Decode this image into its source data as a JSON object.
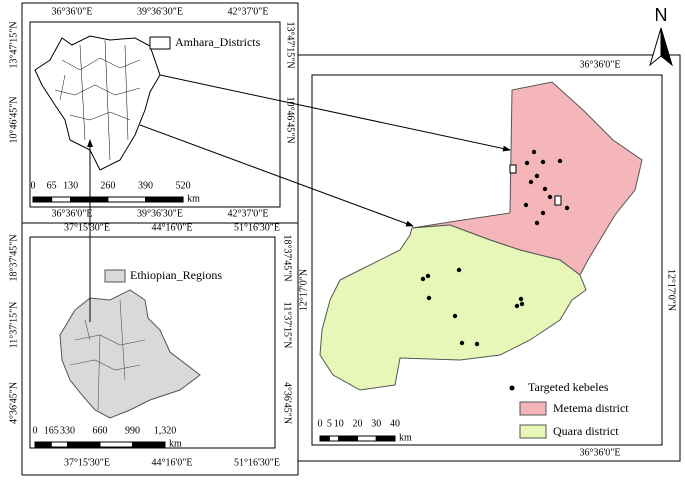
{
  "north_arrow": "N",
  "inset_amhara": {
    "legend": "Amhara_Districts",
    "top_labels": [
      "36°36'0\"E",
      "39°36'30\"E",
      "42°37'0\"E"
    ],
    "bottom_labels": [
      "36°36'0\"E",
      "39°36'30\"E",
      "42°37'0\"E"
    ],
    "left_labels": [
      "13°47'15\"N",
      "10°46'45\"N"
    ],
    "right_labels": [
      "13°47'15\"N",
      "10°46'45\"N"
    ],
    "scale_labels": [
      "0",
      "65",
      "130",
      "260",
      "390",
      "520"
    ],
    "scale_unit": "km"
  },
  "inset_ethiopia": {
    "legend": "Ethiopian_Regions",
    "top_labels": [
      "37°15'30\"E",
      "44°16'0\"E",
      "51°16'30\"E"
    ],
    "bottom_labels": [
      "37°15'30\"E",
      "44°16'0\"E",
      "51°16'30\"E"
    ],
    "left_labels": [
      "18°37'45\"N",
      "11°37'15\"N",
      "4°36'45\"N"
    ],
    "right_labels": [
      "18°37'45\"N",
      "11°37'15\"N",
      "4°36'45\"N"
    ],
    "scale_labels": [
      "0",
      "165",
      "330",
      "660",
      "990",
      "1,320"
    ],
    "scale_unit": "km"
  },
  "main_map": {
    "top_labels": [
      "36°36'0\"E"
    ],
    "bottom_labels": [
      "36°36'0\"E"
    ],
    "left_labels": [
      "12°17'0\"N"
    ],
    "right_labels": [
      "12°17'0\"N"
    ],
    "legend": [
      "Targeted kebeles",
      "Metema district",
      "Quara district"
    ],
    "scale_labels": [
      "0",
      "5",
      "10",
      "20",
      "30",
      "40"
    ],
    "scale_unit": "km"
  }
}
